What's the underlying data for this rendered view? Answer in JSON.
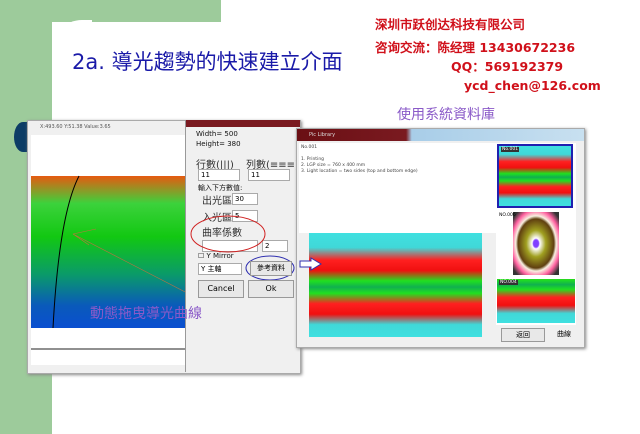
{
  "title": "2a. 導光趨勢的快速建立介面",
  "company": {
    "name": "深圳市跃创达科技有限公司",
    "contact": "咨询交流：陈经理  13430672236",
    "qq": "QQ：569192379",
    "email": "ycd_chen@126.com"
  },
  "left_window": {
    "title": "X:493.60 Y:51.38 Value:3.65"
  },
  "dialog": {
    "width": "Width= 500",
    "height": "Height= 380",
    "rows_label": "行數(|||)",
    "cols_label": "列數(≡≡≡)",
    "rows_value": "11",
    "cols_value": "11",
    "input_hint": "輸入下方數值:",
    "out_label": "出光區",
    "out_value": "30",
    "in_label": "入光區",
    "in_value": "5",
    "curve_label": "曲率係數",
    "curve_value": "2",
    "mirror_label": "Y Mirror",
    "axis_select": "Y 主軸",
    "ref_button": "參考資料",
    "cancel": "Cancel",
    "ok": "Ok"
  },
  "caption_left": "動態拖曳導光曲線",
  "caption_right": "使用系統資料庫",
  "right_window": {
    "title": "Pic Library",
    "no": "No.001",
    "lines": [
      "1. Printing",
      "2. LGP size = 760 x 400 mm",
      "3. Light location = two sides (top and bottom edge)"
    ],
    "thumbs": [
      "No.001",
      "NO.006",
      "NO.004"
    ],
    "return": "返回",
    "curve": "曲線"
  },
  "colors": {
    "title": "#1a1aa8",
    "company": "#d0101a",
    "caption": "#8a5ac8",
    "green_band": "#9dcb9b"
  }
}
